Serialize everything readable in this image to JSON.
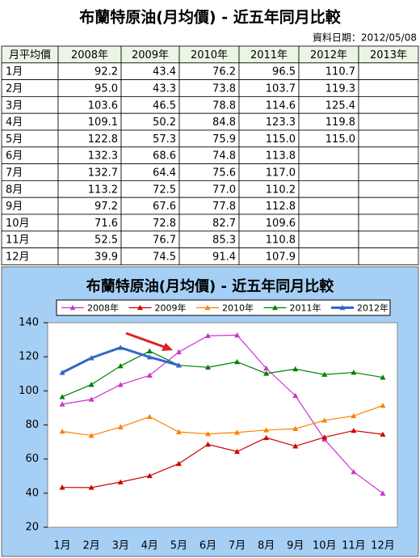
{
  "header": {
    "title": "布蘭特原油(月均價) - 近五年同月比較",
    "date": "資料日期：2012/05/08"
  },
  "table": {
    "columns": [
      "月平均價",
      "2008年",
      "2009年",
      "2010年",
      "2011年",
      "2012年",
      "2013年"
    ],
    "rows": [
      [
        "1月",
        "92.2",
        "43.4",
        "76.2",
        "96.5",
        "110.7"
      ],
      [
        "2月",
        "95.0",
        "43.3",
        "73.8",
        "103.7",
        "119.3"
      ],
      [
        "3月",
        "103.6",
        "46.5",
        "78.8",
        "114.6",
        "125.4"
      ],
      [
        "4月",
        "109.1",
        "50.2",
        "84.8",
        "123.3",
        "119.8"
      ],
      [
        "5月",
        "122.8",
        "57.3",
        "75.9",
        "115.0",
        "115.0"
      ],
      [
        "6月",
        "132.3",
        "68.6",
        "74.8",
        "113.8"
      ],
      [
        "7月",
        "132.7",
        "64.4",
        "75.6",
        "117.0"
      ],
      [
        "8月",
        "113.2",
        "72.5",
        "77.0",
        "110.2"
      ],
      [
        "9月",
        "97.2",
        "67.6",
        "77.8",
        "112.8"
      ],
      [
        "10月",
        "71.6",
        "72.8",
        "82.7",
        "109.6"
      ],
      [
        "11月",
        "52.5",
        "76.7",
        "85.3",
        "110.8"
      ],
      [
        "12月",
        "39.9",
        "74.5",
        "91.4",
        "107.9"
      ]
    ]
  },
  "chart_data": {
    "type": "line",
    "title": "布蘭特原油(月均價) - 近五年同月比較",
    "categories": [
      "1月",
      "2月",
      "3月",
      "4月",
      "5月",
      "6月",
      "7月",
      "8月",
      "9月",
      "10月",
      "11月",
      "12月"
    ],
    "series": [
      {
        "name": "2008年",
        "color": "#cc33cc",
        "values": [
          92.2,
          95.0,
          103.6,
          109.1,
          122.8,
          132.3,
          132.7,
          113.2,
          97.2,
          71.6,
          52.5,
          39.9
        ]
      },
      {
        "name": "2009年",
        "color": "#cc0000",
        "values": [
          43.4,
          43.3,
          46.5,
          50.2,
          57.3,
          68.6,
          64.4,
          72.5,
          67.6,
          72.8,
          76.7,
          74.5
        ]
      },
      {
        "name": "2010年",
        "color": "#ff8000",
        "values": [
          76.2,
          73.8,
          78.8,
          84.8,
          75.9,
          74.8,
          75.6,
          77.0,
          77.8,
          82.7,
          85.3,
          91.4
        ]
      },
      {
        "name": "2011年",
        "color": "#008000",
        "values": [
          96.5,
          103.7,
          114.6,
          123.3,
          115.0,
          113.8,
          117.0,
          110.2,
          112.8,
          109.6,
          110.8,
          107.9
        ]
      },
      {
        "name": "2012年",
        "color": "#3366cc",
        "values": [
          110.7,
          119.3,
          125.4,
          119.8,
          115.0,
          null,
          null,
          null,
          null,
          null,
          null,
          null
        ]
      }
    ],
    "ylim": [
      20,
      140
    ],
    "yticks": [
      20,
      40,
      60,
      80,
      100,
      120,
      140
    ],
    "legend": "top"
  }
}
